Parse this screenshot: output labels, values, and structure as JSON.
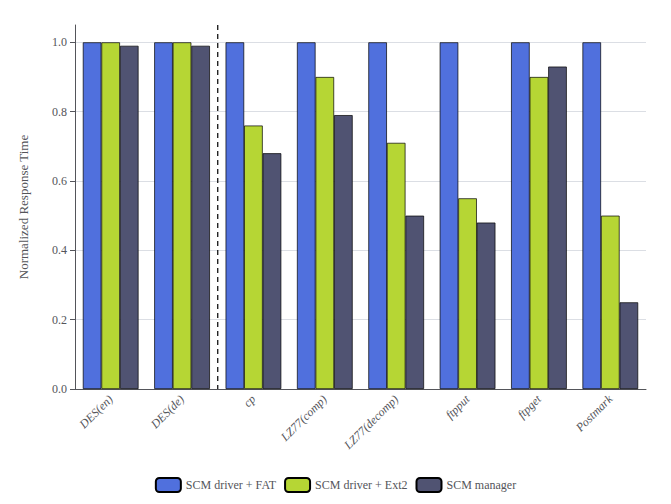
{
  "chart_data": {
    "type": "bar",
    "ylabel": "Normalized Response Time",
    "categories": [
      "DES(en)",
      "DES(de)",
      "cp",
      "LZ77(comp)",
      "LZ77(decomp)",
      "ftpput",
      "ftpget",
      "Postmark"
    ],
    "series": [
      {
        "name": "SCM driver + FAT",
        "values": [
          1.0,
          1.0,
          1.0,
          1.0,
          1.0,
          1.0,
          1.0,
          1.0
        ]
      },
      {
        "name": "SCM driver + Ext2",
        "values": [
          1.0,
          1.0,
          0.76,
          0.9,
          0.71,
          0.55,
          0.9,
          0.5
        ]
      },
      {
        "name": "SCM manager",
        "values": [
          0.99,
          0.99,
          0.68,
          0.79,
          0.5,
          0.48,
          0.93,
          0.25
        ]
      }
    ],
    "ylim": [
      0,
      1.05
    ],
    "yticks": [
      {
        "value": 0,
        "label": "0.0"
      },
      {
        "value": 0.2,
        "label": "0.2"
      },
      {
        "value": 0.4,
        "label": "0.4"
      },
      {
        "value": 0.6,
        "label": "0.6"
      },
      {
        "value": 0.8,
        "label": "0.8"
      },
      {
        "value": 1.0,
        "label": "1.0"
      }
    ],
    "grid": true,
    "legend": "bottom"
  }
}
